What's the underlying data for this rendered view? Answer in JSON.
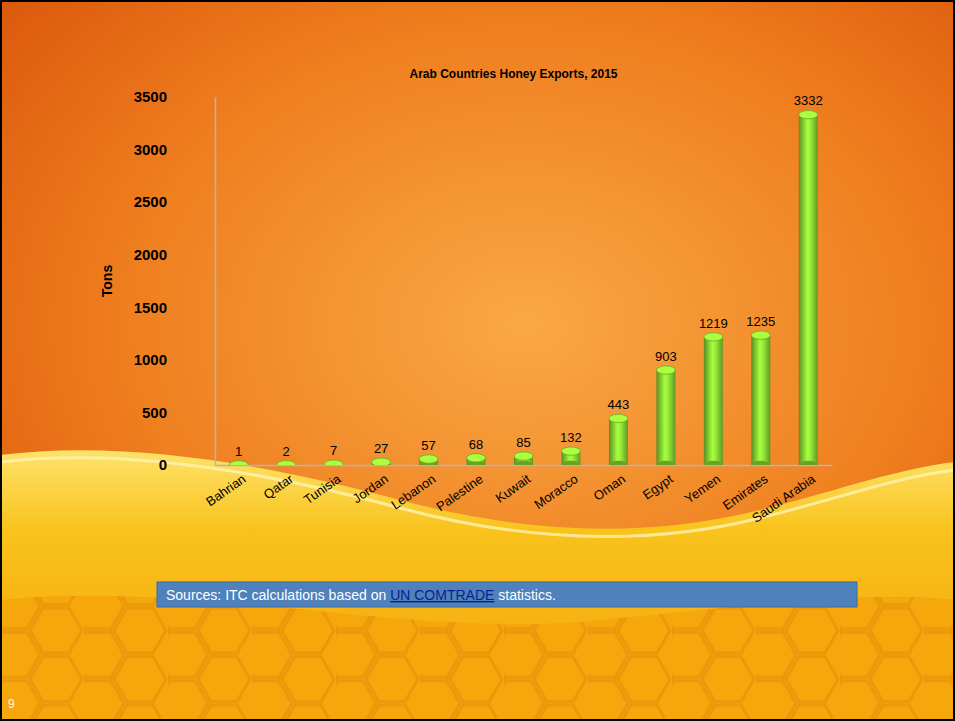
{
  "chart_data": {
    "type": "bar",
    "title": "Arab Countries Honey Exports, 2015",
    "y_label": "Tons",
    "categories": [
      "Bahrian",
      "Qatar",
      "Tunisia",
      "Jordan",
      "Lebanon",
      "Palestine",
      "Kuwait",
      "Moracco",
      "Oman",
      "Egypt",
      "Yemen",
      "Emirates",
      "Saudi Arabia"
    ],
    "values": [
      1,
      2,
      7,
      27,
      57,
      68,
      85,
      132,
      443,
      903,
      1219,
      1235,
      3332
    ],
    "color": "#7cc22e",
    "ylim": [
      0,
      3500
    ],
    "yticks": [
      0,
      500,
      1000,
      1500,
      2000,
      2500,
      3000,
      3500
    ],
    "grid": false,
    "data_labels": true
  },
  "slide": {
    "source": [
      "Sources: ITC calculations based on ",
      "UN COMTRADE",
      " statistics."
    ],
    "page": "9"
  }
}
